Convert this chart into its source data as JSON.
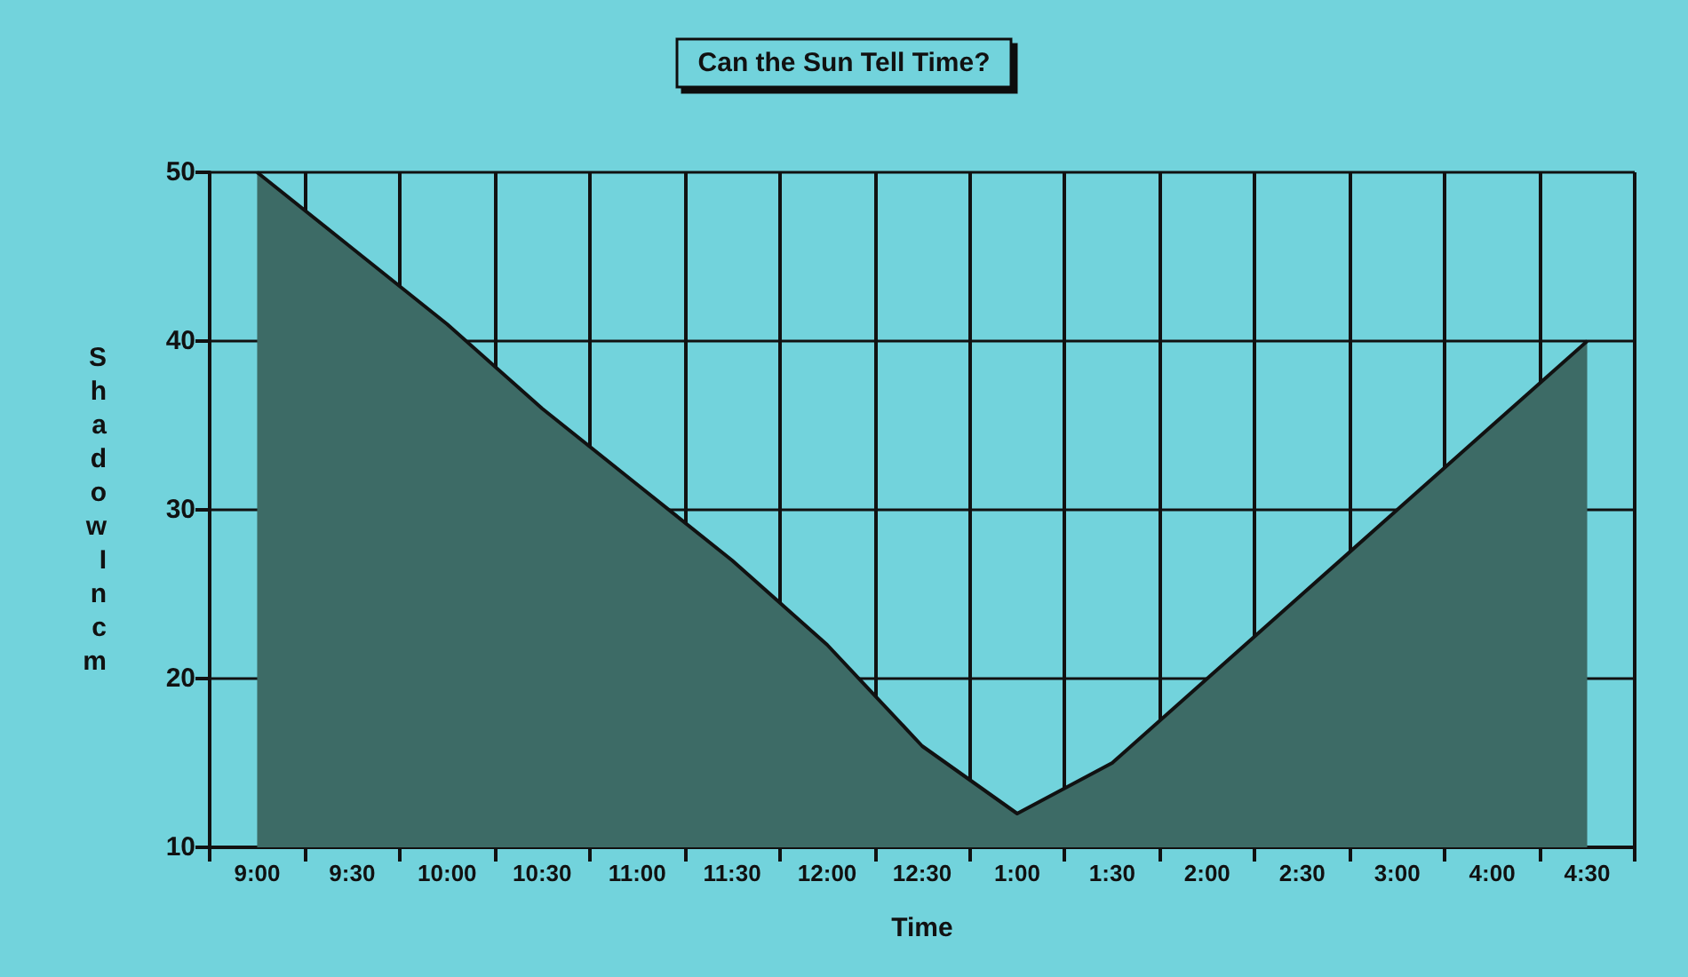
{
  "chart_data": {
    "type": "area",
    "title": "Can the Sun Tell Time?",
    "xlabel": "Time",
    "ylabel": "Shadow In cm",
    "categories": [
      "9:00",
      "9:30",
      "10:00",
      "10:30",
      "11:00",
      "11:30",
      "12:00",
      "12:30",
      "1:00",
      "1:30",
      "2:00",
      "2:30",
      "3:00",
      "4:00",
      "4:30"
    ],
    "series": [
      {
        "color": "#3d6b66",
        "values": [
          50,
          45.5,
          41,
          36,
          31.5,
          27,
          22,
          16,
          12,
          15,
          20,
          25,
          30,
          35,
          40
        ]
      }
    ],
    "ylim": [
      10,
      50
    ],
    "yticks": [
      10,
      20,
      30,
      40,
      50
    ],
    "grid": true,
    "marker": "none"
  }
}
